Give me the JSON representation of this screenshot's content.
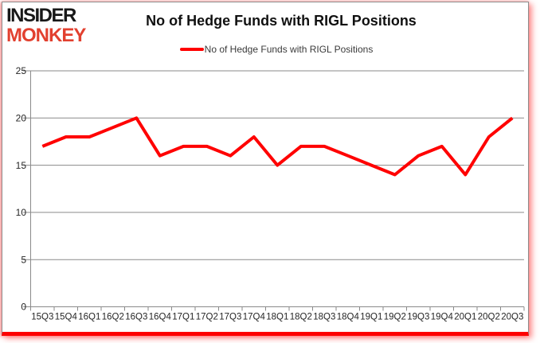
{
  "logo": {
    "line1": "INSIDER",
    "line2": "MONKEY"
  },
  "header": {
    "title": "No of Hedge Funds with RIGL Positions"
  },
  "legend": {
    "label": "No of Hedge Funds with RIGL Positions"
  },
  "colors": {
    "line": "#ff0000",
    "grid": "#8a8a8a",
    "axis_text": "#262626",
    "logo_red": "#e2402f",
    "bottom_bar": "#fe0000",
    "title_text": "#111111"
  },
  "chart_data": {
    "type": "line",
    "title": "No of Hedge Funds with RIGL Positions",
    "categories": [
      "15Q3",
      "15Q4",
      "16Q1",
      "16Q2",
      "16Q3",
      "16Q4",
      "17Q1",
      "17Q2",
      "17Q3",
      "17Q4",
      "18Q1",
      "18Q2",
      "18Q3",
      "18Q4",
      "19Q1",
      "19Q2",
      "19Q3",
      "19Q4",
      "20Q1",
      "20Q2",
      "20Q3"
    ],
    "series": [
      {
        "name": "No of Hedge Funds with RIGL Positions",
        "values": [
          17,
          18,
          18,
          19,
          20,
          16,
          17,
          17,
          16,
          18,
          15,
          17,
          17,
          16,
          15,
          14,
          16,
          17,
          14,
          18,
          20
        ]
      }
    ],
    "xlabel": "",
    "ylabel": "",
    "ylim": [
      0,
      25
    ],
    "yticks": [
      0,
      5,
      10,
      15,
      20,
      25
    ],
    "grid": true,
    "legend_position": "top"
  }
}
